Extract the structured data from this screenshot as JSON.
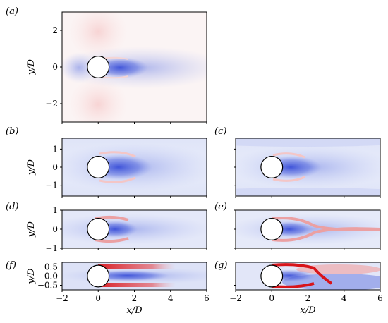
{
  "chart_data": [
    {
      "type": "heatmap",
      "label": "(a)",
      "xlim": [
        -2,
        6
      ],
      "ylim": [
        -3,
        3
      ],
      "yticks": [
        "−2",
        "0",
        "2"
      ],
      "ylabel": "y/D",
      "xlabel": "",
      "xticks": [],
      "cylinder": {
        "x": 0,
        "y": 0,
        "diameter": 1
      }
    },
    {
      "type": "heatmap",
      "label": "(b)",
      "xlim": [
        -2,
        6
      ],
      "ylim": [
        -1.6,
        1.6
      ],
      "yticks": [
        "−1",
        "0",
        "1"
      ],
      "ylabel": "y/D",
      "xlabel": "",
      "xticks": [],
      "cylinder": {
        "x": 0,
        "y": 0,
        "diameter": 1
      }
    },
    {
      "type": "heatmap",
      "label": "(c)",
      "xlim": [
        -2,
        6
      ],
      "ylim": [
        -1.6,
        1.6
      ],
      "yticks": [],
      "ylabel": "",
      "xlabel": "",
      "xticks": [],
      "cylinder": {
        "x": 0,
        "y": 0,
        "diameter": 1
      }
    },
    {
      "type": "heatmap",
      "label": "(d)",
      "xlim": [
        -2,
        6
      ],
      "ylim": [
        -1,
        1
      ],
      "yticks": [
        "−1",
        "0",
        "1"
      ],
      "ylabel": "y/D",
      "xlabel": "",
      "xticks": [],
      "cylinder": {
        "x": 0,
        "y": 0,
        "diameter": 1
      }
    },
    {
      "type": "heatmap",
      "label": "(e)",
      "xlim": [
        -2,
        6
      ],
      "ylim": [
        -1,
        1
      ],
      "yticks": [],
      "ylabel": "",
      "xlabel": "",
      "xticks": [],
      "cylinder": {
        "x": 0,
        "y": 0,
        "diameter": 1
      }
    },
    {
      "type": "heatmap",
      "label": "(f)",
      "xlim": [
        -2,
        6
      ],
      "ylim": [
        -0.75,
        0.75
      ],
      "yticks": [
        "0.5",
        "0.0",
        "−0.5"
      ],
      "ylabel": "y/D",
      "xlabel": "x/D",
      "xticks": [
        "−2",
        "0",
        "2",
        "4",
        "6"
      ],
      "cylinder": {
        "x": 0,
        "y": 0,
        "diameter": 1
      }
    },
    {
      "type": "heatmap",
      "label": "(g)",
      "xlim": [
        -2,
        6
      ],
      "ylim": [
        -0.75,
        0.75
      ],
      "yticks": [],
      "ylabel": "",
      "xlabel": "x/D",
      "xticks": [
        "−2",
        "0",
        "2",
        "4",
        "6"
      ],
      "cylinder": {
        "x": 0,
        "y": 0,
        "diameter": 1
      }
    }
  ],
  "colors": {
    "blue": "#3a4fd8",
    "red": "#d8141a",
    "neutral": "#ffffff"
  }
}
